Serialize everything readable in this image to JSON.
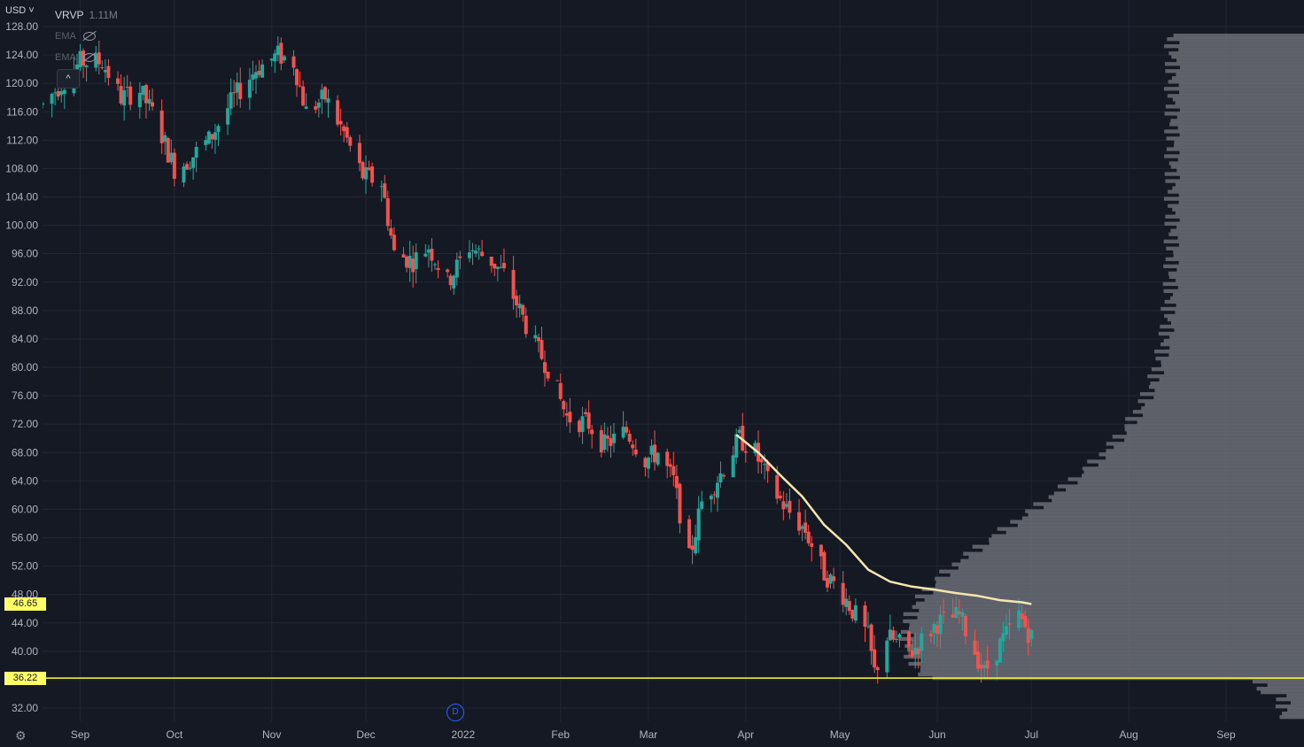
{
  "header": {
    "currency": "USD ˅",
    "indicator_name": "VRVP",
    "indicator_value": "1.11M",
    "ema1_label": "EMA",
    "ema2_label": "EMA",
    "collapse_symbol": "^"
  },
  "price_badges": {
    "current": "46.65",
    "support": "36.22"
  },
  "event_marker": "D",
  "colors": {
    "background": "#151924",
    "grid": "#232734",
    "up": "#26a69a",
    "down": "#ef5350",
    "ema": "#f5e6b0",
    "support_line": "#ffff33",
    "volume_profile": "#6a6d75"
  },
  "chart_data": {
    "type": "candlestick",
    "ylim": [
      30,
      128
    ],
    "yticks": [
      "128.00",
      "124.00",
      "120.00",
      "116.00",
      "112.00",
      "108.00",
      "104.00",
      "100.00",
      "96.00",
      "92.00",
      "88.00",
      "84.00",
      "80.00",
      "76.00",
      "72.00",
      "68.00",
      "64.00",
      "60.00",
      "56.00",
      "52.00",
      "48.00",
      "44.00",
      "40.00",
      "36.00",
      "32.00"
    ],
    "xtick_labels": [
      "Sep",
      "Oct",
      "Nov",
      "Dec",
      "2022",
      "Feb",
      "Mar",
      "Apr",
      "May",
      "Jun",
      "Jul",
      "Aug",
      "Sep"
    ],
    "xtick_dates": [
      "2021-09-01",
      "2021-10-01",
      "2021-11-01",
      "2021-12-01",
      "2022-01-01",
      "2022-02-01",
      "2022-03-01",
      "2022-04-01",
      "2022-05-01",
      "2022-06-01",
      "2022-07-01",
      "2022-08-01",
      "2022-09-01"
    ],
    "x_range": [
      "2021-08-20",
      "2022-09-23"
    ],
    "current_price": 46.65,
    "support_level": 36.22,
    "ema_series": {
      "dates": [
        "2022-03-29",
        "2022-04-05",
        "2022-04-12",
        "2022-04-19",
        "2022-04-26",
        "2022-05-03",
        "2022-05-10",
        "2022-05-17",
        "2022-05-24",
        "2022-05-31",
        "2022-06-07",
        "2022-06-14",
        "2022-06-21",
        "2022-06-28",
        "2022-07-01"
      ],
      "values": [
        70.5,
        68.0,
        64.8,
        61.8,
        57.8,
        55.0,
        51.5,
        49.8,
        49.1,
        48.7,
        48.2,
        47.8,
        47.2,
        46.9,
        46.65
      ]
    },
    "waypoints": [
      [
        "2021-08-20",
        117
      ],
      [
        "2021-09-01",
        123
      ],
      [
        "2021-09-08",
        123
      ],
      [
        "2021-09-14",
        118
      ],
      [
        "2021-09-20",
        119
      ],
      [
        "2021-09-25",
        115
      ],
      [
        "2021-10-01",
        108
      ],
      [
        "2021-10-05",
        109
      ],
      [
        "2021-10-12",
        112
      ],
      [
        "2021-10-20",
        118
      ],
      [
        "2021-10-27",
        122
      ],
      [
        "2021-11-03",
        124
      ],
      [
        "2021-11-08",
        123
      ],
      [
        "2021-11-12",
        116
      ],
      [
        "2021-11-18",
        118
      ],
      [
        "2021-11-24",
        113
      ],
      [
        "2021-11-30",
        107
      ],
      [
        "2021-12-06",
        106
      ],
      [
        "2021-12-10",
        96
      ],
      [
        "2021-12-16",
        95
      ],
      [
        "2021-12-21",
        97
      ],
      [
        "2021-12-27",
        92
      ],
      [
        "2022-01-03",
        97
      ],
      [
        "2022-01-10",
        95
      ],
      [
        "2022-01-14",
        93
      ],
      [
        "2022-01-20",
        87
      ],
      [
        "2022-01-24",
        83
      ],
      [
        "2022-01-28",
        80
      ],
      [
        "2022-02-03",
        73
      ],
      [
        "2022-02-10",
        72
      ],
      [
        "2022-02-15",
        69
      ],
      [
        "2022-02-22",
        71
      ],
      [
        "2022-02-28",
        67
      ],
      [
        "2022-03-04",
        68
      ],
      [
        "2022-03-09",
        64
      ],
      [
        "2022-03-14",
        53
      ],
      [
        "2022-03-18",
        61
      ],
      [
        "2022-03-24",
        65
      ],
      [
        "2022-03-30",
        70
      ],
      [
        "2022-04-04",
        68
      ],
      [
        "2022-04-08",
        64
      ],
      [
        "2022-04-14",
        60
      ],
      [
        "2022-04-20",
        57
      ],
      [
        "2022-04-26",
        51
      ],
      [
        "2022-05-02",
        48
      ],
      [
        "2022-05-06",
        45
      ],
      [
        "2022-05-10",
        42
      ],
      [
        "2022-05-12",
        37
      ],
      [
        "2022-05-16",
        42
      ],
      [
        "2022-05-24",
        40
      ],
      [
        "2022-06-01",
        44
      ],
      [
        "2022-06-08",
        45
      ],
      [
        "2022-06-13",
        40
      ],
      [
        "2022-06-16",
        37
      ],
      [
        "2022-06-21",
        41
      ],
      [
        "2022-06-27",
        45
      ],
      [
        "2022-07-01",
        42
      ]
    ]
  }
}
